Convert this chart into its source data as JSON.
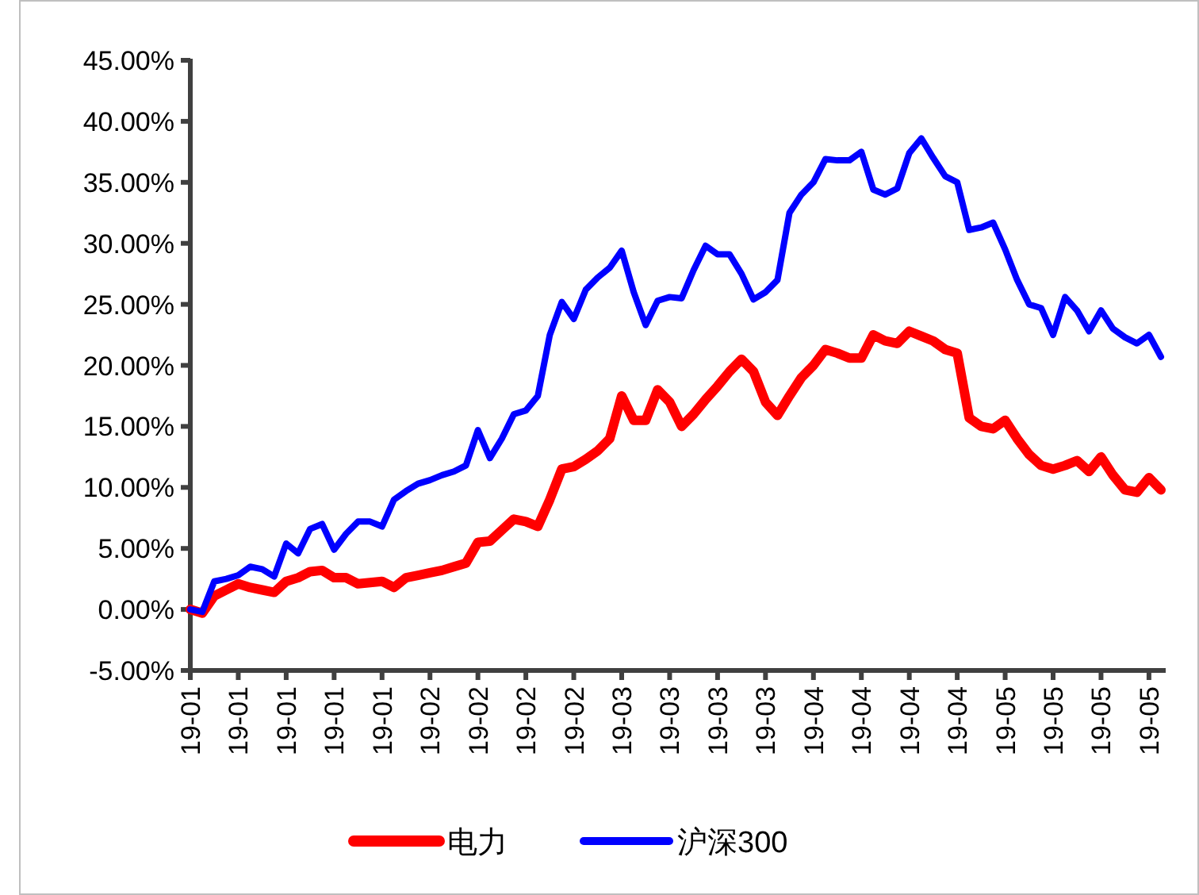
{
  "chart_data": {
    "type": "line",
    "categories": [
      "19-01",
      null,
      null,
      null,
      "19-01",
      null,
      null,
      null,
      "19-01",
      null,
      null,
      null,
      "19-01",
      null,
      null,
      null,
      "19-01",
      null,
      null,
      null,
      "19-02",
      null,
      null,
      null,
      "19-02",
      null,
      null,
      null,
      "19-02",
      null,
      null,
      null,
      "19-02",
      null,
      null,
      null,
      "19-03",
      null,
      null,
      null,
      "19-03",
      null,
      null,
      null,
      "19-03",
      null,
      null,
      null,
      "19-03",
      null,
      null,
      null,
      "19-04",
      null,
      null,
      null,
      "19-04",
      null,
      null,
      null,
      "19-04",
      null,
      null,
      null,
      "19-04",
      null,
      null,
      null,
      "19-05",
      null,
      null,
      null,
      "19-05",
      null,
      null,
      null,
      "19-05",
      null,
      null,
      null,
      "19-05",
      null
    ],
    "series": [
      {
        "name": "电力",
        "color": "#ff0000",
        "values": [
          0,
          -0.3,
          1.1,
          1.6,
          2.1,
          1.8,
          1.6,
          1.4,
          2.3,
          2.6,
          3.1,
          3.2,
          2.6,
          2.6,
          2.1,
          2.2,
          2.3,
          1.8,
          2.6,
          2.8,
          3.0,
          3.2,
          3.5,
          3.8,
          5.5,
          5.6,
          6.5,
          7.4,
          7.2,
          6.8,
          9,
          11.5,
          11.7,
          12.3,
          13,
          14,
          17.5,
          15.5,
          15.5,
          18,
          17,
          15,
          16,
          17.2,
          18.3,
          19.5,
          20.5,
          19.5,
          17,
          15.9,
          17.5,
          19,
          20,
          21.3,
          21,
          20.6,
          20.6,
          22.5,
          22.0,
          21.8,
          22.8,
          22.4,
          22.0,
          21.3,
          21.0,
          15.7,
          15.0,
          14.8,
          15.5,
          14,
          12.7,
          11.8,
          11.5,
          11.8,
          12.2,
          11.3,
          12.5,
          11,
          9.8,
          9.6,
          10.8,
          9.8
        ]
      },
      {
        "name": "沪深300",
        "color": "#0000ff",
        "values": [
          0,
          -0.2,
          2.3,
          2.5,
          2.8,
          3.5,
          3.3,
          2.7,
          5.4,
          4.6,
          6.6,
          7.0,
          4.9,
          6.2,
          7.2,
          7.2,
          6.8,
          9.0,
          9.7,
          10.3,
          10.6,
          11.0,
          11.3,
          11.8,
          14.7,
          12.4,
          14.0,
          16.0,
          16.3,
          17.5,
          22.5,
          25.2,
          23.8,
          26.2,
          27.2,
          28.0,
          29.4,
          26,
          23.3,
          25.3,
          25.6,
          25.5,
          27.8,
          29.8,
          29.1,
          29.1,
          27.5,
          25.4,
          26,
          27,
          32.5,
          34,
          35,
          36.9,
          36.8,
          36.8,
          37.5,
          34.4,
          34.0,
          34.5,
          37.4,
          38.6,
          37,
          35.5,
          35.0,
          31.1,
          31.3,
          31.7,
          29.5,
          27,
          25,
          24.7,
          22.5,
          25.6,
          24.5,
          22.8,
          24.5,
          23,
          22.3,
          21.8,
          22.5,
          20.7
        ]
      }
    ],
    "ylim": [
      -5,
      45
    ],
    "yticks": [
      {
        "value": -5,
        "label": "-5.00%"
      },
      {
        "value": 0,
        "label": "0.00%"
      },
      {
        "value": 5,
        "label": "5.00%"
      },
      {
        "value": 10,
        "label": "10.00%"
      },
      {
        "value": 15,
        "label": "15.00%"
      },
      {
        "value": 20,
        "label": "20.00%"
      },
      {
        "value": 25,
        "label": "25.00%"
      },
      {
        "value": 30,
        "label": "30.00%"
      },
      {
        "value": 35,
        "label": "35.00%"
      },
      {
        "value": 40,
        "label": "40.00%"
      },
      {
        "value": 45,
        "label": "45.00%"
      }
    ],
    "grid": false,
    "legend": "bottom",
    "marker": "none",
    "line_style": "solid"
  }
}
